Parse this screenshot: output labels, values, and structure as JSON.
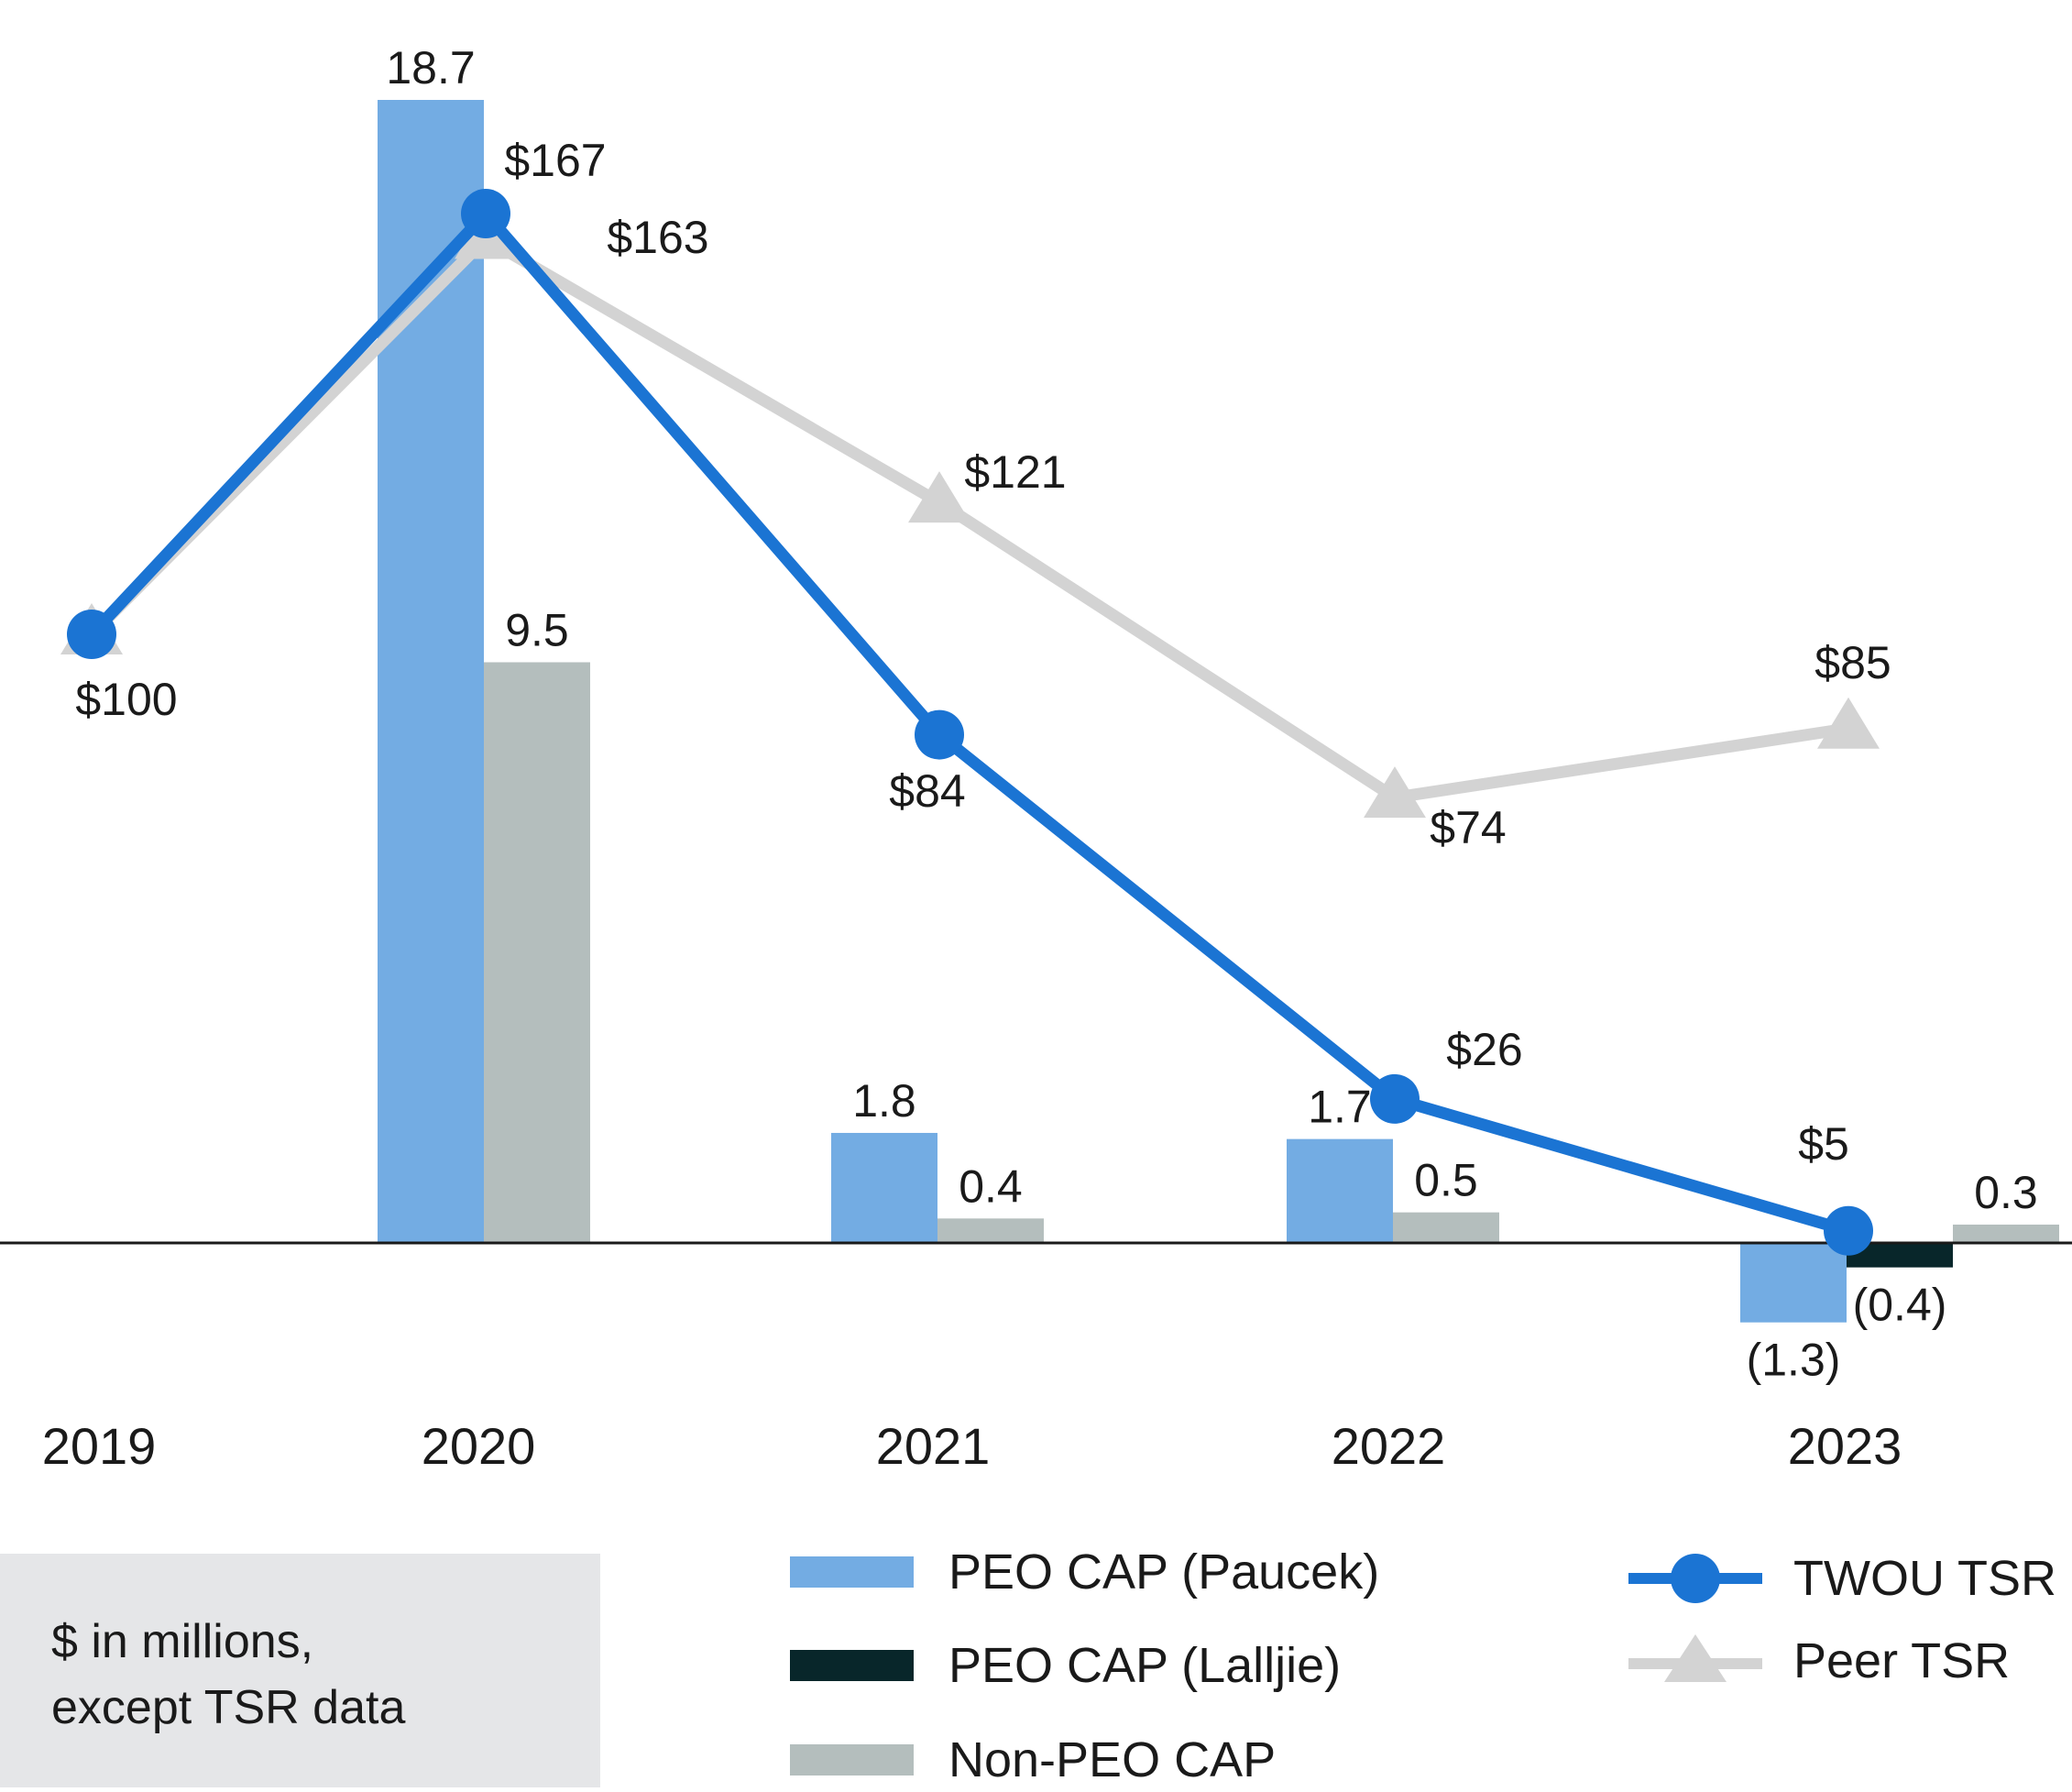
{
  "chart_data": {
    "type": "bar+line",
    "categories": [
      "2019",
      "2020",
      "2021",
      "2022",
      "2023"
    ],
    "bar_series": [
      {
        "name": "PEO CAP (Paucek)",
        "color": "#73ace3",
        "values": [
          null,
          18.7,
          1.8,
          1.7,
          -1.3
        ],
        "labels": [
          "",
          "18.7",
          "1.8",
          "1.7",
          "(1.3)"
        ]
      },
      {
        "name": "PEO CAP (Lalljie)",
        "color": "#08262a",
        "values": [
          null,
          null,
          null,
          null,
          -0.4
        ],
        "labels": [
          "",
          "",
          "",
          "",
          "(0.4)"
        ]
      },
      {
        "name": "Non-PEO CAP",
        "color": "#b4bebd",
        "values": [
          null,
          9.5,
          0.4,
          0.5,
          0.3
        ],
        "labels": [
          "",
          "9.5",
          "0.4",
          "0.5",
          "0.3"
        ]
      }
    ],
    "line_series": [
      {
        "name": "TWOU TSR",
        "color": "#1b74d3",
        "marker": "circle",
        "values": [
          100,
          167,
          84,
          26,
          5
        ],
        "labels": [
          "$100",
          "$167",
          "$84",
          "$26",
          "$5"
        ]
      },
      {
        "name": "Peer TSR",
        "color": "#d3d3d3",
        "marker": "triangle",
        "values": [
          100,
          163,
          121,
          74,
          85
        ],
        "labels": [
          "",
          "$163",
          "$121",
          "$74",
          "$85"
        ]
      }
    ]
  },
  "note": {
    "line1": "$ in millions,",
    "line2": "except TSR data"
  }
}
